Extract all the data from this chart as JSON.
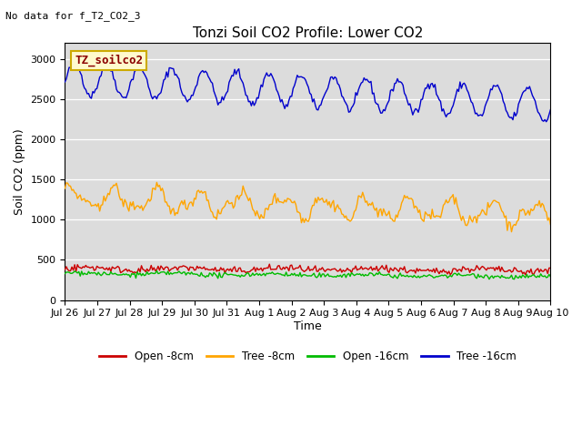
{
  "title": "Tonzi Soil CO2 Profile: Lower CO2",
  "no_data_text": "No data for f_T2_CO2_3",
  "ylabel": "Soil CO2 (ppm)",
  "xlabel": "Time",
  "legend_label": "TZ_soilco2",
  "ylim": [
    0,
    3200
  ],
  "yticks": [
    0,
    500,
    1000,
    1500,
    2000,
    2500,
    3000
  ],
  "plot_bg_color": "#dcdcdc",
  "fig_bg_color": "#ffffff",
  "series": {
    "open_8cm": {
      "color": "#cc0000",
      "label": "Open -8cm"
    },
    "tree_8cm": {
      "color": "#ffa500",
      "label": "Tree -8cm"
    },
    "open_16cm": {
      "color": "#00bb00",
      "label": "Open -16cm"
    },
    "tree_16cm": {
      "color": "#0000cc",
      "label": "Tree -16cm"
    }
  },
  "n_points": 350,
  "time_start": 0,
  "time_end": 15.0,
  "x_tick_labels": [
    "Jul 26",
    "Jul 27",
    "Jul 28",
    "Jul 29",
    "Jul 30",
    "Jul 31",
    "Aug 1",
    "Aug 2",
    "Aug 3",
    "Aug 4",
    "Aug 5",
    "Aug 6",
    "Aug 7",
    "Aug 8",
    "Aug 9",
    "Aug 10"
  ],
  "x_tick_positions": [
    0,
    1,
    2,
    3,
    4,
    5,
    6,
    7,
    8,
    9,
    10,
    11,
    12,
    13,
    14,
    15
  ],
  "tick_fontsize": 8,
  "label_fontsize": 9,
  "title_fontsize": 11
}
